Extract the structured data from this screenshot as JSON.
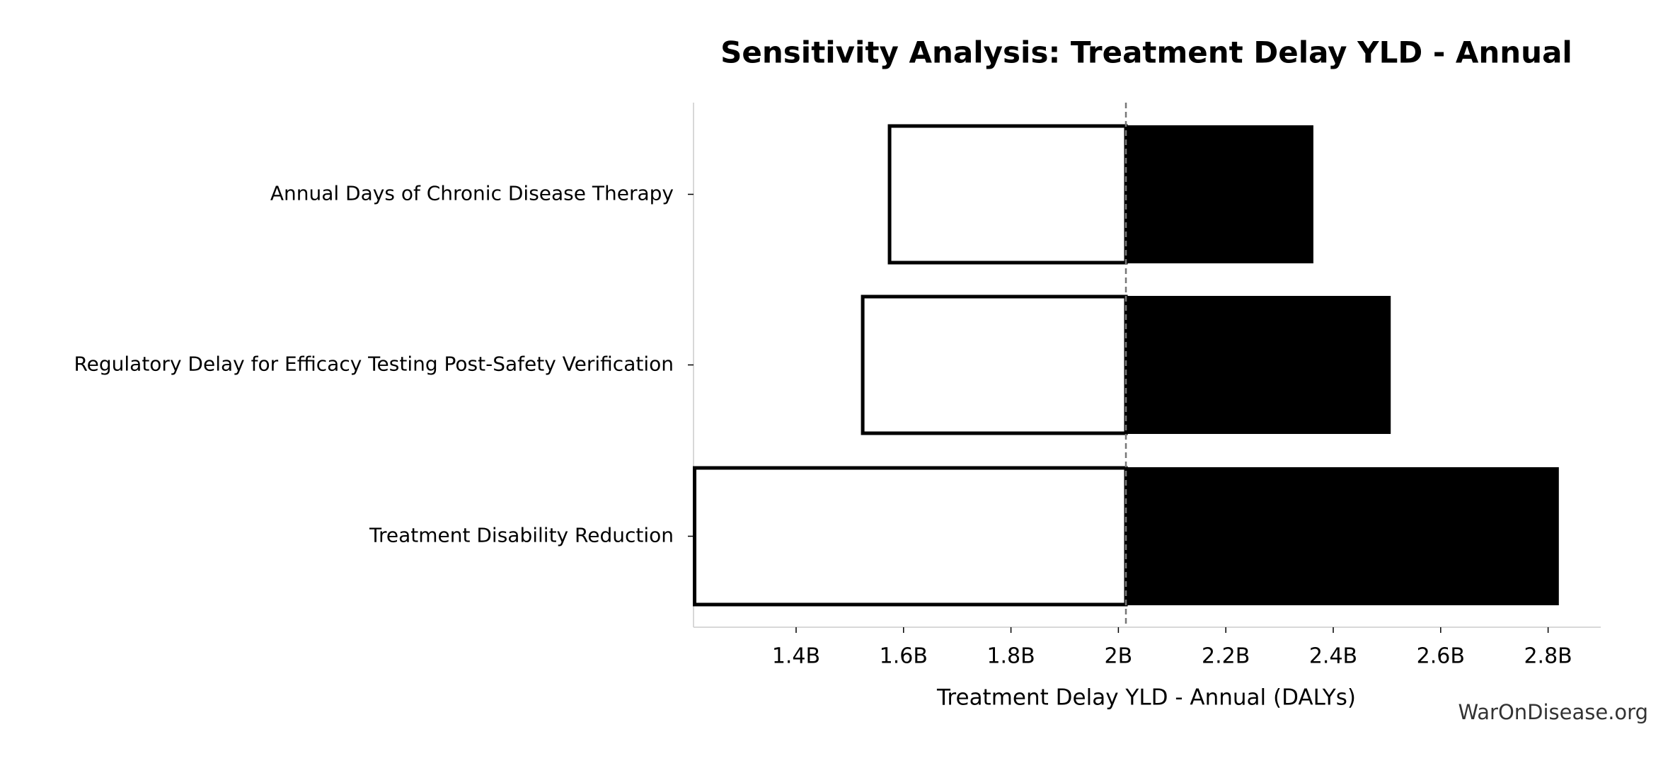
{
  "chart_data": {
    "type": "tornado",
    "title": "Sensitivity Analysis: Treatment Delay YLD - Annual",
    "x_label": "Treatment Delay YLD - Annual (DALYs)",
    "watermark": "WarOnDisease.org",
    "categories": [
      "Annual Days of Chronic Disease Therapy",
      "Regulatory Delay for Efficacy Testing Post-Safety Verification",
      "Treatment Disability Reduction"
    ],
    "baseline": 2014000000,
    "low_values": [
      1574000000,
      1524000000,
      1211000000
    ],
    "high_values": [
      2363000000,
      2507000000,
      2820000000
    ],
    "low_color": "#ffffff",
    "high_color": "#000000",
    "xlim": [
      1209000000,
      2898000000
    ],
    "xticks": [
      {
        "value": 1400000000,
        "label": "1.4B"
      },
      {
        "value": 1600000000,
        "label": "1.6B"
      },
      {
        "value": 1800000000,
        "label": "1.8B"
      },
      {
        "value": 2000000000,
        "label": "2B"
      },
      {
        "value": 2200000000,
        "label": "2.2B"
      },
      {
        "value": 2400000000,
        "label": "2.4B"
      },
      {
        "value": 2600000000,
        "label": "2.6B"
      },
      {
        "value": 2800000000,
        "label": "2.8B"
      }
    ]
  }
}
